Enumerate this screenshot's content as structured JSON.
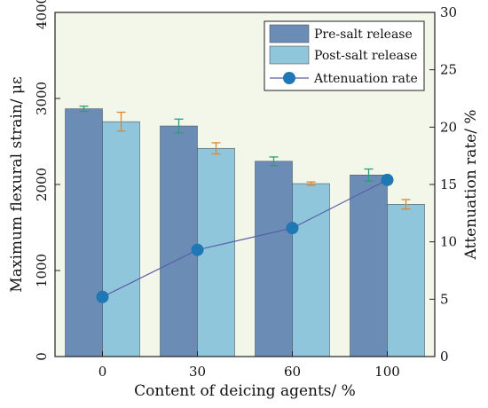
{
  "chart_data": {
    "type": "bar",
    "categories": [
      "0",
      "30",
      "60",
      "100"
    ],
    "series": [
      {
        "name": "Pre-salt release",
        "axis": "left",
        "values": [
          2880,
          2680,
          2270,
          2110
        ],
        "errors": [
          30,
          80,
          50,
          70
        ],
        "color": "#6b8db5",
        "error_color": "#2a9d7a"
      },
      {
        "name": "Post-salt release",
        "axis": "left",
        "values": [
          2730,
          2420,
          2010,
          1770
        ],
        "errors": [
          110,
          65,
          20,
          55
        ],
        "color": "#8fc6dc",
        "error_color": "#e0862a"
      },
      {
        "name": "Attenuation rate",
        "type": "line",
        "axis": "right",
        "values": [
          5.2,
          9.3,
          11.2,
          15.4
        ],
        "color": "#1f77b4"
      }
    ],
    "xlabel": "Content of deicing agents/ %",
    "ylabel": "Maximum flexural strain/ με",
    "y2label": "Attenuation rate/ %",
    "ylim": [
      0,
      4000
    ],
    "y2lim": [
      0,
      30
    ],
    "yticks": [
      "0",
      "1000",
      "2000",
      "3000",
      "4000"
    ],
    "y2ticks": [
      "0",
      "5",
      "10",
      "15",
      "20",
      "25",
      "30"
    ],
    "legend_position": "top-right",
    "plot_background": "#f2f7ea"
  }
}
